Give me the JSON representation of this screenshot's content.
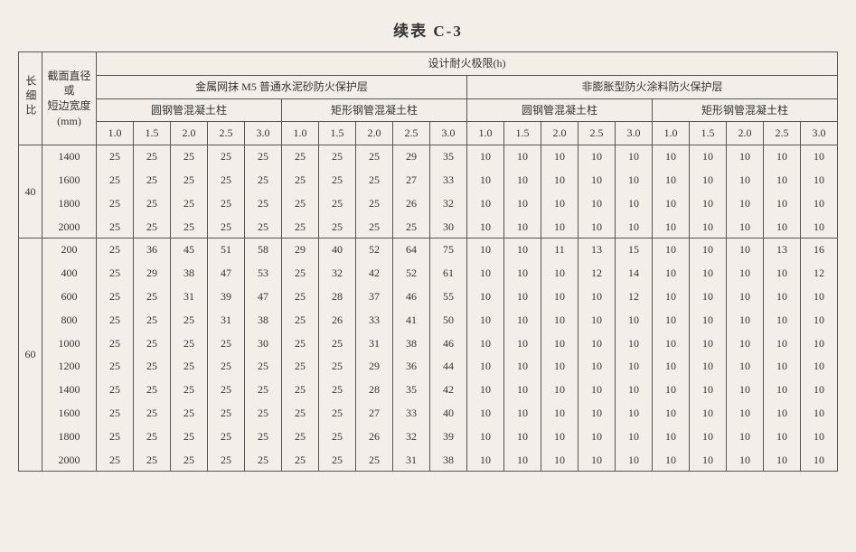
{
  "title": "续表 C-3",
  "header": {
    "col_ratio": "长细比",
    "col_dim_lines": [
      "截面直径",
      "或",
      "短边宽度",
      "(mm)"
    ],
    "top": "设计耐火极限(h)",
    "group_left": "金属网抹 M5 普通水泥砂防火保护层",
    "group_right": "非膨胀型防火涂料防火保护层",
    "sub_a": "圆钢管混凝土柱",
    "sub_b": "矩形钢管混凝土柱",
    "durations": [
      "1.0",
      "1.5",
      "2.0",
      "2.5",
      "3.0"
    ]
  },
  "blocks": [
    {
      "ratio": "40",
      "rows": [
        {
          "dim": "1400",
          "vals": [
            "25",
            "25",
            "25",
            "25",
            "25",
            "25",
            "25",
            "25",
            "29",
            "35",
            "10",
            "10",
            "10",
            "10",
            "10",
            "10",
            "10",
            "10",
            "10",
            "10"
          ]
        },
        {
          "dim": "1600",
          "vals": [
            "25",
            "25",
            "25",
            "25",
            "25",
            "25",
            "25",
            "25",
            "27",
            "33",
            "10",
            "10",
            "10",
            "10",
            "10",
            "10",
            "10",
            "10",
            "10",
            "10"
          ]
        },
        {
          "dim": "1800",
          "vals": [
            "25",
            "25",
            "25",
            "25",
            "25",
            "25",
            "25",
            "25",
            "26",
            "32",
            "10",
            "10",
            "10",
            "10",
            "10",
            "10",
            "10",
            "10",
            "10",
            "10"
          ]
        },
        {
          "dim": "2000",
          "vals": [
            "25",
            "25",
            "25",
            "25",
            "25",
            "25",
            "25",
            "25",
            "25",
            "30",
            "10",
            "10",
            "10",
            "10",
            "10",
            "10",
            "10",
            "10",
            "10",
            "10"
          ]
        }
      ]
    },
    {
      "ratio": "60",
      "rows": [
        {
          "dim": "200",
          "vals": [
            "25",
            "36",
            "45",
            "51",
            "58",
            "29",
            "40",
            "52",
            "64",
            "75",
            "10",
            "10",
            "11",
            "13",
            "15",
            "10",
            "10",
            "10",
            "13",
            "16"
          ]
        },
        {
          "dim": "400",
          "vals": [
            "25",
            "29",
            "38",
            "47",
            "53",
            "25",
            "32",
            "42",
            "52",
            "61",
            "10",
            "10",
            "10",
            "12",
            "14",
            "10",
            "10",
            "10",
            "10",
            "12"
          ]
        },
        {
          "dim": "600",
          "vals": [
            "25",
            "25",
            "31",
            "39",
            "47",
            "25",
            "28",
            "37",
            "46",
            "55",
            "10",
            "10",
            "10",
            "10",
            "12",
            "10",
            "10",
            "10",
            "10",
            "10"
          ]
        },
        {
          "dim": "800",
          "vals": [
            "25",
            "25",
            "25",
            "31",
            "38",
            "25",
            "26",
            "33",
            "41",
            "50",
            "10",
            "10",
            "10",
            "10",
            "10",
            "10",
            "10",
            "10",
            "10",
            "10"
          ]
        },
        {
          "dim": "1000",
          "vals": [
            "25",
            "25",
            "25",
            "25",
            "30",
            "25",
            "25",
            "31",
            "38",
            "46",
            "10",
            "10",
            "10",
            "10",
            "10",
            "10",
            "10",
            "10",
            "10",
            "10"
          ]
        },
        {
          "dim": "1200",
          "vals": [
            "25",
            "25",
            "25",
            "25",
            "25",
            "25",
            "25",
            "29",
            "36",
            "44",
            "10",
            "10",
            "10",
            "10",
            "10",
            "10",
            "10",
            "10",
            "10",
            "10"
          ]
        },
        {
          "dim": "1400",
          "vals": [
            "25",
            "25",
            "25",
            "25",
            "25",
            "25",
            "25",
            "28",
            "35",
            "42",
            "10",
            "10",
            "10",
            "10",
            "10",
            "10",
            "10",
            "10",
            "10",
            "10"
          ]
        },
        {
          "dim": "1600",
          "vals": [
            "25",
            "25",
            "25",
            "25",
            "25",
            "25",
            "25",
            "27",
            "33",
            "40",
            "10",
            "10",
            "10",
            "10",
            "10",
            "10",
            "10",
            "10",
            "10",
            "10"
          ]
        },
        {
          "dim": "1800",
          "vals": [
            "25",
            "25",
            "25",
            "25",
            "25",
            "25",
            "25",
            "26",
            "32",
            "39",
            "10",
            "10",
            "10",
            "10",
            "10",
            "10",
            "10",
            "10",
            "10",
            "10"
          ]
        },
        {
          "dim": "2000",
          "vals": [
            "25",
            "25",
            "25",
            "25",
            "25",
            "25",
            "25",
            "25",
            "31",
            "38",
            "10",
            "10",
            "10",
            "10",
            "10",
            "10",
            "10",
            "10",
            "10",
            "10"
          ]
        }
      ]
    }
  ]
}
